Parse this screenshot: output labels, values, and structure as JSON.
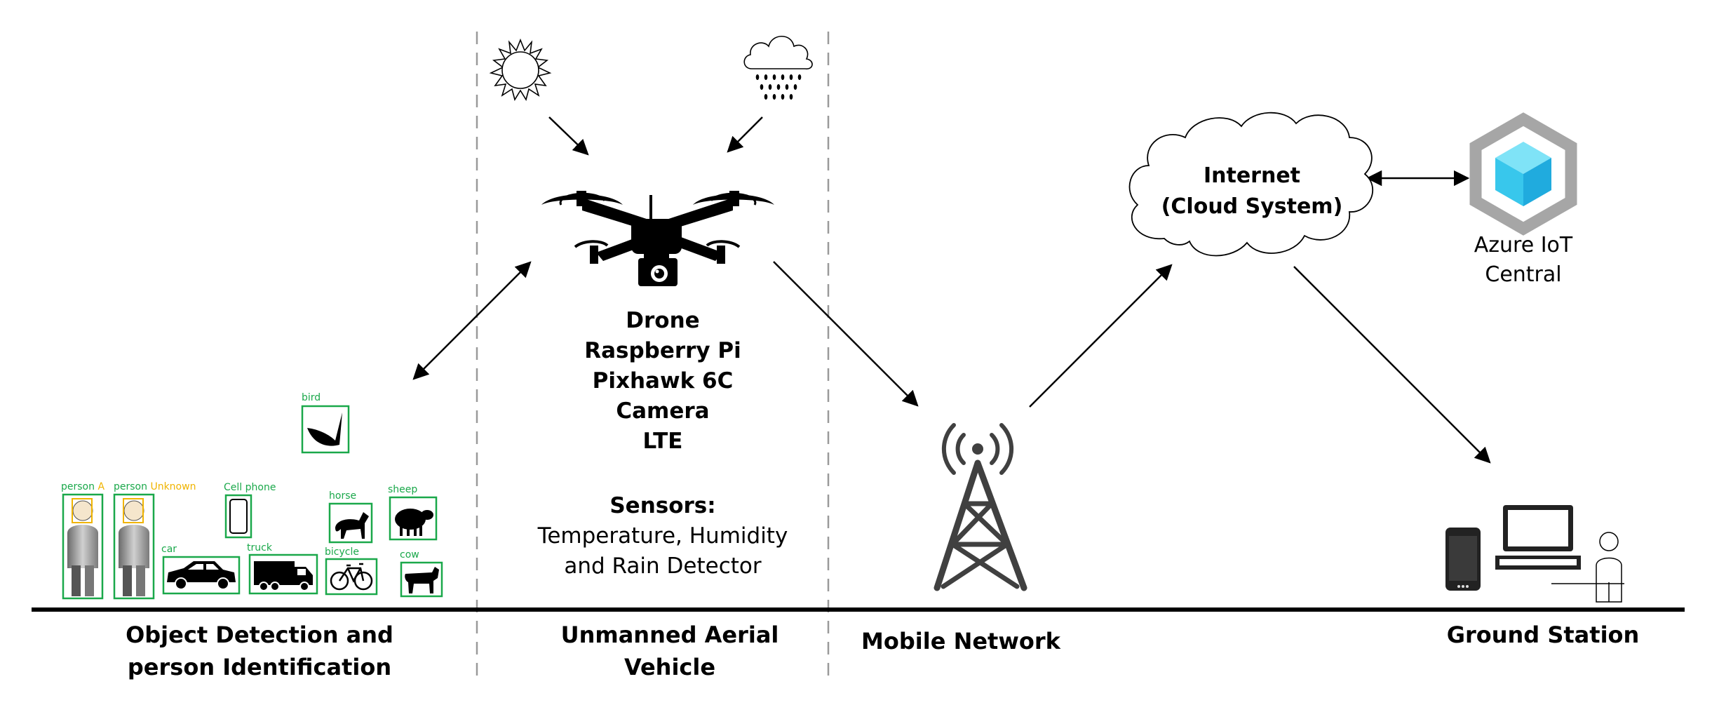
{
  "detections": {
    "bird": "bird",
    "person_a_prefix": "person",
    "person_a_name": "A",
    "person_u_prefix": "person",
    "person_u_name": "Unknown",
    "cell_phone": "Cell phone",
    "horse": "horse",
    "sheep": "sheep",
    "car": "car",
    "truck": "truck",
    "bicycle": "bicycle",
    "cow": "cow"
  },
  "drone_specs": [
    "Drone",
    "Raspberry Pi",
    "Pixhawk 6C",
    "Camera",
    "LTE"
  ],
  "sensors": {
    "heading": "Sensors:",
    "line1": "Temperature, Humidity",
    "line2": "and Rain Detector"
  },
  "cloud": {
    "line1": "Internet",
    "line2": "(Cloud System)"
  },
  "azure": {
    "line1": "Azure IoT",
    "line2": "Central"
  },
  "sections": {
    "object_detection_1": "Object Detection and",
    "object_detection_2": "person Identification",
    "uav_1": "Unmanned Aerial",
    "uav_2": "Vehicle",
    "mobile_network": "Mobile Network",
    "ground_station": "Ground Station"
  },
  "colors": {
    "detection_box": "#1aa84a",
    "unknown_label": "#f0b400",
    "face_box": "#f0b400",
    "azure_cube_light": "#7fe3f7",
    "azure_cube_mid": "#38c7ec",
    "azure_cube_dark": "#1aa0d8",
    "azure_hex": "#a6a6a6",
    "tower": "#404040"
  }
}
